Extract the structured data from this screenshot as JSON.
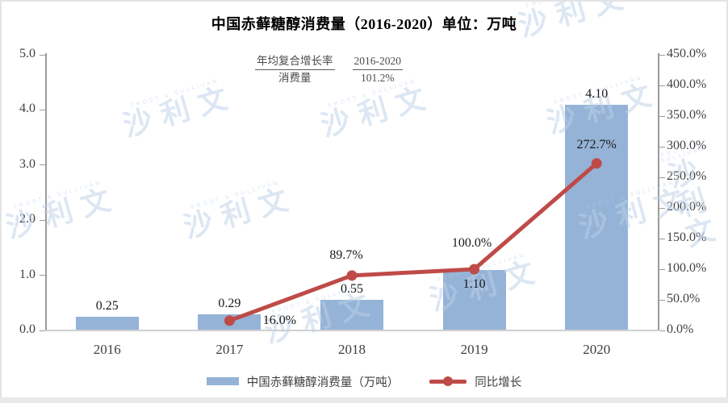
{
  "watermark": {
    "text": "沙利文",
    "subtext": "FROST & SULLIVAN"
  },
  "chart_data": {
    "type": "combo",
    "title": "中国赤藓糖醇消费量（2016-2020）单位：万吨",
    "categories": [
      "2016",
      "2017",
      "2018",
      "2019",
      "2020"
    ],
    "series": [
      {
        "name": "中国赤藓糖醇消费量（万吨）",
        "type": "bar",
        "axis": "left",
        "values": [
          0.25,
          0.29,
          0.55,
          1.1,
          4.1
        ],
        "labels": [
          "0.25",
          "0.29",
          "0.55",
          "1.10",
          "4.10"
        ],
        "color": "#95B3D7"
      },
      {
        "name": "同比增长",
        "type": "line",
        "axis": "right",
        "values": [
          null,
          16.0,
          89.7,
          100.0,
          272.7
        ],
        "labels": [
          null,
          "16.0%",
          "89.7%",
          "100.0%",
          "272.7%"
        ],
        "color": "#BE4B48"
      }
    ],
    "left_axis": {
      "min": 0.0,
      "max": 5.0,
      "ticks": [
        "5.0",
        "4.0",
        "3.0",
        "2.0",
        "1.0",
        "0.0"
      ]
    },
    "right_axis": {
      "min": 0.0,
      "max": 450.0,
      "ticks": [
        "450.0%",
        "400.0%",
        "350.0%",
        "300.0%",
        "250.0%",
        "200.0%",
        "150.0%",
        "100.0%",
        "50.0%",
        "0.0%"
      ]
    },
    "annotation_table": {
      "header": [
        "年均复合增长率",
        "2016-2020"
      ],
      "rows": [
        [
          "消费量",
          "101.2%"
        ]
      ]
    },
    "legend_position": "bottom",
    "grid": false
  },
  "colors": {
    "bar": "#95B3D7",
    "line": "#BE4B48",
    "axis": "#9B9B9B",
    "baseline": "#D0D0D0",
    "watermark": "#BDD1E9"
  }
}
